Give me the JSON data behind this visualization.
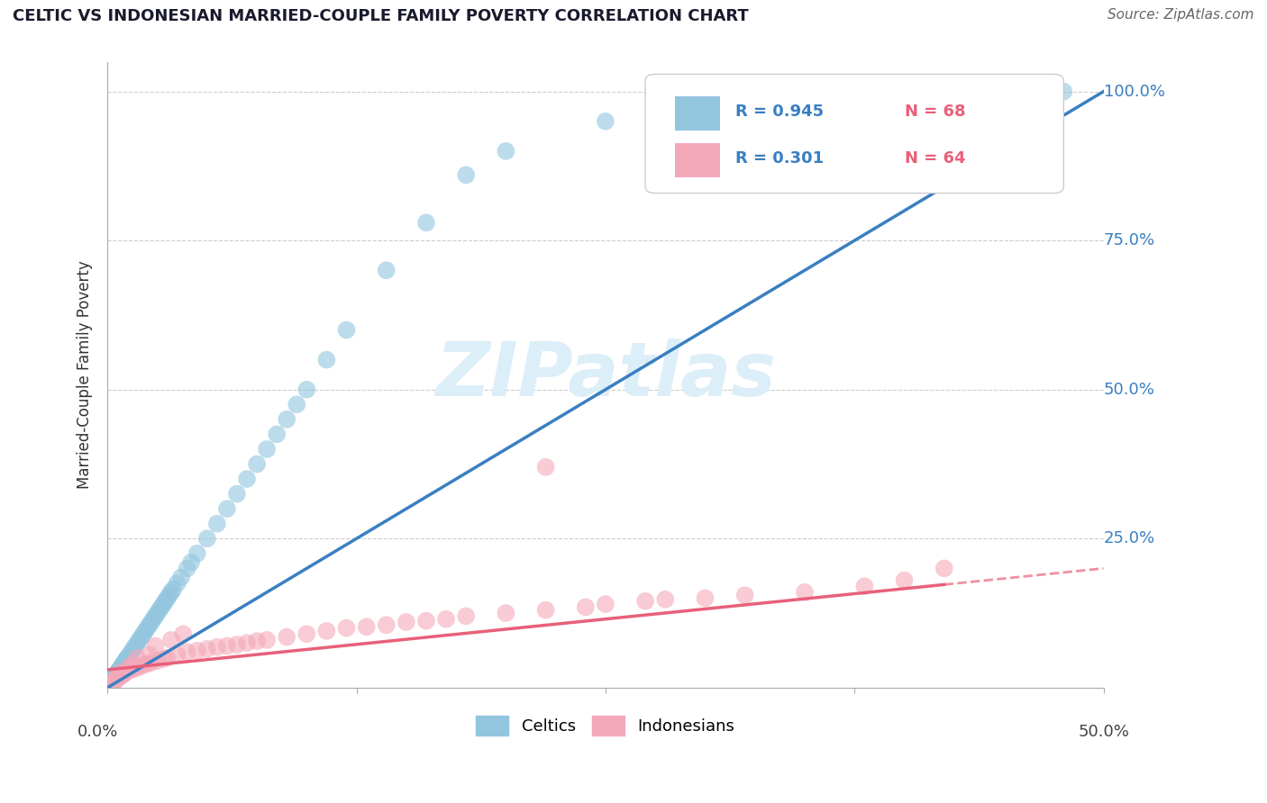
{
  "title": "CELTIC VS INDONESIAN MARRIED-COUPLE FAMILY POVERTY CORRELATION CHART",
  "source": "Source: ZipAtlas.com",
  "ylabel": "Married-Couple Family Poverty",
  "xrange": [
    0.0,
    50.0
  ],
  "yrange": [
    0.0,
    105.0
  ],
  "celtics_R": 0.945,
  "celtics_N": 68,
  "indonesians_R": 0.301,
  "indonesians_N": 64,
  "celtics_color": "#92c5de",
  "indonesians_color": "#f4a9ba",
  "celtics_line_color": "#3a7fc1",
  "indonesians_line_color": "#e8607a",
  "ytick_color": "#3a7fc1",
  "legend_text_color": "#3a7fc1",
  "legend_N_color": "#e8607a",
  "watermark_color": "#dceef8",
  "background_color": "#ffffff",
  "grid_color": "#cccccc",
  "celtics_scatter_x": [
    0.1,
    0.15,
    0.2,
    0.25,
    0.3,
    0.35,
    0.4,
    0.45,
    0.5,
    0.55,
    0.6,
    0.65,
    0.7,
    0.75,
    0.8,
    0.85,
    0.9,
    0.95,
    1.0,
    1.1,
    1.2,
    1.3,
    1.4,
    1.5,
    1.6,
    1.7,
    1.8,
    1.9,
    2.0,
    2.1,
    2.2,
    2.3,
    2.4,
    2.5,
    2.6,
    2.7,
    2.8,
    2.9,
    3.0,
    3.1,
    3.2,
    3.3,
    3.5,
    3.7,
    4.0,
    4.2,
    4.5,
    5.0,
    5.5,
    6.0,
    6.5,
    7.0,
    7.5,
    8.0,
    8.5,
    9.0,
    9.5,
    10.0,
    11.0,
    12.0,
    14.0,
    16.0,
    18.0,
    20.0,
    25.0,
    30.0,
    40.0,
    48.0
  ],
  "celtics_scatter_y": [
    0.5,
    0.8,
    1.0,
    1.2,
    1.5,
    1.8,
    2.0,
    2.2,
    2.5,
    2.8,
    3.0,
    3.2,
    3.5,
    3.8,
    4.0,
    4.2,
    4.5,
    4.8,
    5.0,
    5.5,
    6.0,
    6.5,
    7.0,
    7.5,
    8.0,
    8.5,
    9.0,
    9.5,
    10.0,
    10.5,
    11.0,
    11.5,
    12.0,
    12.5,
    13.0,
    13.5,
    14.0,
    14.5,
    15.0,
    15.5,
    16.0,
    16.5,
    17.5,
    18.5,
    20.0,
    21.0,
    22.5,
    25.0,
    27.5,
    30.0,
    32.5,
    35.0,
    37.5,
    40.0,
    42.5,
    45.0,
    47.5,
    50.0,
    55.0,
    60.0,
    70.0,
    78.0,
    86.0,
    90.0,
    95.0,
    96.0,
    98.0,
    100.0
  ],
  "indonesians_scatter_x": [
    0.1,
    0.2,
    0.3,
    0.4,
    0.5,
    0.6,
    0.7,
    0.8,
    0.9,
    1.0,
    1.2,
    1.4,
    1.6,
    1.8,
    2.0,
    2.2,
    2.5,
    2.8,
    3.0,
    3.5,
    4.0,
    4.5,
    5.0,
    5.5,
    6.0,
    6.5,
    7.0,
    7.5,
    8.0,
    9.0,
    10.0,
    11.0,
    12.0,
    13.0,
    14.0,
    15.0,
    16.0,
    17.0,
    18.0,
    20.0,
    22.0,
    24.0,
    25.0,
    27.0,
    28.0,
    30.0,
    32.0,
    35.0,
    38.0,
    40.0,
    0.15,
    0.25,
    0.35,
    0.55,
    0.65,
    1.1,
    1.3,
    1.5,
    2.1,
    2.4,
    3.2,
    3.8,
    22.0,
    42.0
  ],
  "indonesians_scatter_y": [
    0.5,
    0.8,
    1.0,
    1.2,
    1.5,
    1.8,
    2.0,
    2.2,
    2.5,
    2.8,
    3.0,
    3.2,
    3.5,
    3.8,
    4.0,
    4.2,
    4.5,
    4.8,
    5.0,
    5.5,
    6.0,
    6.2,
    6.5,
    6.8,
    7.0,
    7.2,
    7.5,
    7.8,
    8.0,
    8.5,
    9.0,
    9.5,
    10.0,
    10.2,
    10.5,
    11.0,
    11.2,
    11.5,
    12.0,
    12.5,
    13.0,
    13.5,
    14.0,
    14.5,
    14.8,
    15.0,
    15.5,
    16.0,
    17.0,
    18.0,
    0.3,
    0.6,
    1.2,
    2.0,
    2.5,
    3.5,
    4.0,
    5.0,
    5.5,
    7.0,
    8.0,
    9.0,
    37.0,
    20.0
  ]
}
